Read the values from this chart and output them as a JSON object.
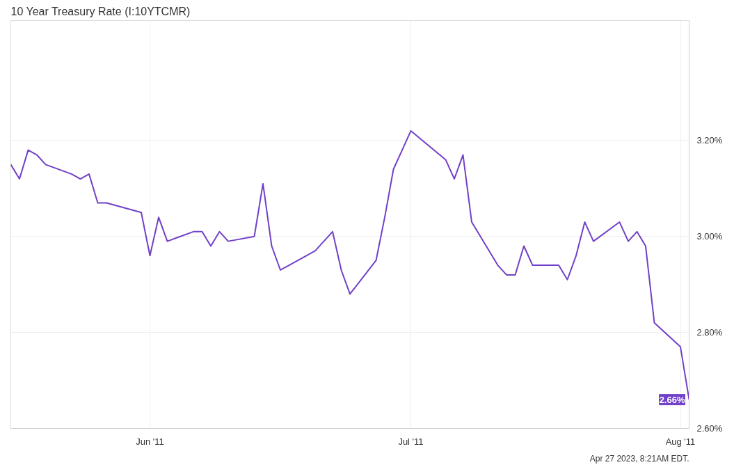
{
  "chart_data": {
    "type": "line",
    "title": "10 Year Treasury Rate (I:10YTCMR)",
    "x": [
      "2011-05-16",
      "2011-05-17",
      "2011-05-18",
      "2011-05-19",
      "2011-05-20",
      "2011-05-23",
      "2011-05-24",
      "2011-05-25",
      "2011-05-26",
      "2011-05-27",
      "2011-05-31",
      "2011-06-01",
      "2011-06-02",
      "2011-06-03",
      "2011-06-06",
      "2011-06-07",
      "2011-06-08",
      "2011-06-09",
      "2011-06-10",
      "2011-06-13",
      "2011-06-14",
      "2011-06-15",
      "2011-06-16",
      "2011-06-17",
      "2011-06-20",
      "2011-06-21",
      "2011-06-22",
      "2011-06-23",
      "2011-06-24",
      "2011-06-27",
      "2011-06-28",
      "2011-06-29",
      "2011-06-30",
      "2011-07-01",
      "2011-07-05",
      "2011-07-06",
      "2011-07-07",
      "2011-07-08",
      "2011-07-11",
      "2011-07-12",
      "2011-07-13",
      "2011-07-14",
      "2011-07-15",
      "2011-07-18",
      "2011-07-19",
      "2011-07-20",
      "2011-07-21",
      "2011-07-22",
      "2011-07-25",
      "2011-07-26",
      "2011-07-27",
      "2011-07-28",
      "2011-07-29",
      "2011-08-01",
      "2011-08-02"
    ],
    "series": [
      {
        "color": "#7040c8",
        "values": [
          3.15,
          3.12,
          3.18,
          3.17,
          3.15,
          3.13,
          3.12,
          3.13,
          3.07,
          3.07,
          3.05,
          2.96,
          3.04,
          2.99,
          3.01,
          3.01,
          2.98,
          3.01,
          2.99,
          3.0,
          3.11,
          2.98,
          2.93,
          2.94,
          2.97,
          2.99,
          3.01,
          2.93,
          2.88,
          2.95,
          3.04,
          3.14,
          3.18,
          3.22,
          3.16,
          3.12,
          3.17,
          3.03,
          2.94,
          2.92,
          2.92,
          2.98,
          2.94,
          2.94,
          2.91,
          2.96,
          3.03,
          2.99,
          3.03,
          2.99,
          3.01,
          2.98,
          2.82,
          2.77,
          2.66
        ]
      }
    ],
    "xlim": [
      "2011-05-16",
      "2011-08-02"
    ],
    "ylim": [
      2.6,
      3.45
    ],
    "xticks": [
      {
        "value": "2011-06-01",
        "label": "Jun '11"
      },
      {
        "value": "2011-07-01",
        "label": "Jul '11"
      },
      {
        "value": "2011-08-01",
        "label": "Aug '11"
      }
    ],
    "yticks": [
      {
        "value": 2.6,
        "label": "2.60%"
      },
      {
        "value": 2.8,
        "label": "2.80%"
      },
      {
        "value": 3.0,
        "label": "3.00%"
      },
      {
        "value": 3.2,
        "label": "3.20%"
      }
    ],
    "grid": true,
    "marker": "none",
    "line_style": "solid",
    "annotations": [
      {
        "text": "2.66%",
        "x": "2011-08-02",
        "y": 2.66
      },
      "Apr 27 2023, 8:21AM EDT."
    ]
  }
}
